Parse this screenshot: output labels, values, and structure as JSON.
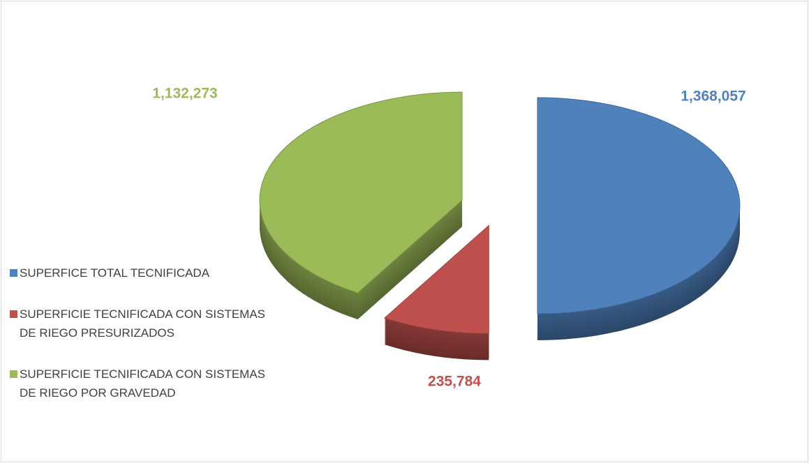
{
  "chart_data": {
    "type": "pie",
    "categories": [
      "SUPERFICE TOTAL TECNIFICADA",
      "SUPERFICIE TECNIFICADA CON SISTEMAS DE RIEGO PRESURIZADOS",
      "SUPERFICIE TECNIFICADA CON SISTEMAS DE RIEGO POR GRAVEDAD"
    ],
    "values": [
      1368057,
      235784,
      1132273
    ],
    "value_labels": [
      "1,368,057",
      "235,784",
      "1,132,273"
    ],
    "colors": [
      "#4f81bd",
      "#c0504d",
      "#9bbb59"
    ],
    "legend": "left"
  }
}
